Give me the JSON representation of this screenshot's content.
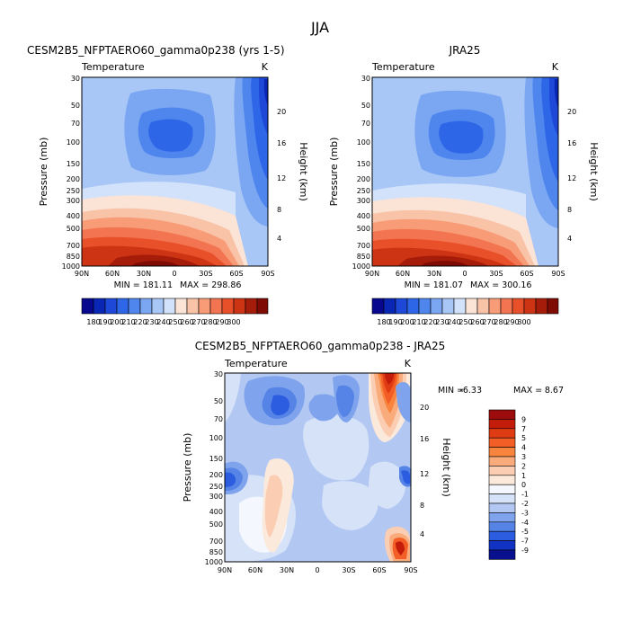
{
  "figure_title": "JJA",
  "chart_data": [
    {
      "type": "heatmap",
      "title": "CESM2B5_NFPTAERO60_gamma0p238 (yrs 1-5)",
      "subtitle_left": "Temperature",
      "subtitle_right": "K",
      "xlabel": "",
      "ylabel": "Pressure (mb)",
      "ylabel_right": "Height (km)",
      "x_ticks": [
        "90N",
        "60N",
        "30N",
        "0",
        "30S",
        "60S",
        "90S"
      ],
      "y_ticks": [
        "30",
        "50",
        "70",
        "100",
        "150",
        "200",
        "250",
        "300",
        "400",
        "500",
        "700",
        "850",
        "1000"
      ],
      "y_right_ticks": [
        "20",
        "16",
        "12",
        "8",
        "4"
      ],
      "min_label": "MIN = 181.11",
      "max_label": "MAX = 298.86",
      "colorbar_labels": [
        "180",
        "190",
        "200",
        "210",
        "220",
        "230",
        "240",
        "250",
        "260",
        "270",
        "280",
        "290",
        "300"
      ],
      "colorbar_levels": [
        180,
        190,
        200,
        210,
        220,
        230,
        240,
        250,
        260,
        270,
        280,
        290,
        300
      ],
      "colorbar_colors": [
        "#08088e",
        "#0a26b5",
        "#1e48d8",
        "#2e66e8",
        "#4e86ee",
        "#7aa6f2",
        "#a8c6f6",
        "#d2e2fa",
        "#fbe3d6",
        "#f9c3a8",
        "#f89c78",
        "#f27450",
        "#e8502a",
        "#cc3414",
        "#a61c0a",
        "#7e0c04"
      ]
    },
    {
      "type": "heatmap",
      "title": "JRA25",
      "subtitle_left": "Temperature",
      "subtitle_right": "K",
      "xlabel": "",
      "ylabel": "Pressure (mb)",
      "ylabel_right": "Height (km)",
      "x_ticks": [
        "90N",
        "60N",
        "30N",
        "0",
        "30S",
        "60S",
        "90S"
      ],
      "y_ticks": [
        "30",
        "50",
        "70",
        "100",
        "150",
        "200",
        "250",
        "300",
        "400",
        "500",
        "700",
        "850",
        "1000"
      ],
      "y_right_ticks": [
        "20",
        "16",
        "12",
        "8",
        "4"
      ],
      "min_label": "MIN = 181.07",
      "max_label": "MAX = 300.16",
      "colorbar_labels": [
        "180",
        "190",
        "200",
        "210",
        "220",
        "230",
        "240",
        "250",
        "260",
        "270",
        "280",
        "290",
        "300"
      ],
      "colorbar_levels": [
        180,
        190,
        200,
        210,
        220,
        230,
        240,
        250,
        260,
        270,
        280,
        290,
        300
      ]
    },
    {
      "type": "heatmap",
      "title": "CESM2B5_NFPTAERO60_gamma0p238 - JRA25",
      "subtitle_left": "Temperature",
      "subtitle_right": "K",
      "xlabel": "",
      "ylabel": "Pressure (mb)",
      "ylabel_right": "Height (km)",
      "x_ticks": [
        "90N",
        "60N",
        "30N",
        "0",
        "30S",
        "60S",
        "90S"
      ],
      "y_ticks": [
        "30",
        "50",
        "70",
        "100",
        "150",
        "200",
        "250",
        "300",
        "400",
        "500",
        "700",
        "850",
        "1000"
      ],
      "y_right_ticks": [
        "20",
        "16",
        "12",
        "8",
        "4"
      ],
      "min_label": "MIN =",
      "min_value": "-6.33",
      "max_label": "MAX =",
      "max_value": "8.67",
      "colorbar_labels": [
        "9",
        "7",
        "5",
        "4",
        "3",
        "2",
        "1",
        "0",
        "-1",
        "-2",
        "-3",
        "-4",
        "-5",
        "-7",
        "-9"
      ],
      "colorbar_levels": [
        -9,
        -7,
        -5,
        -4,
        -3,
        -2,
        -1,
        0,
        1,
        2,
        3,
        4,
        5,
        7,
        9
      ],
      "colorbar_colors": [
        "#9c0c0c",
        "#c41c0a",
        "#e03c14",
        "#f25e26",
        "#f8843e",
        "#f9ab7c",
        "#fbcdb2",
        "#fbe9dc",
        "#f4f7fd",
        "#d6e2f8",
        "#b2c8f2",
        "#7fa3ec",
        "#5584e6",
        "#2c5ce0",
        "#1232c4",
        "#08108e"
      ]
    }
  ]
}
